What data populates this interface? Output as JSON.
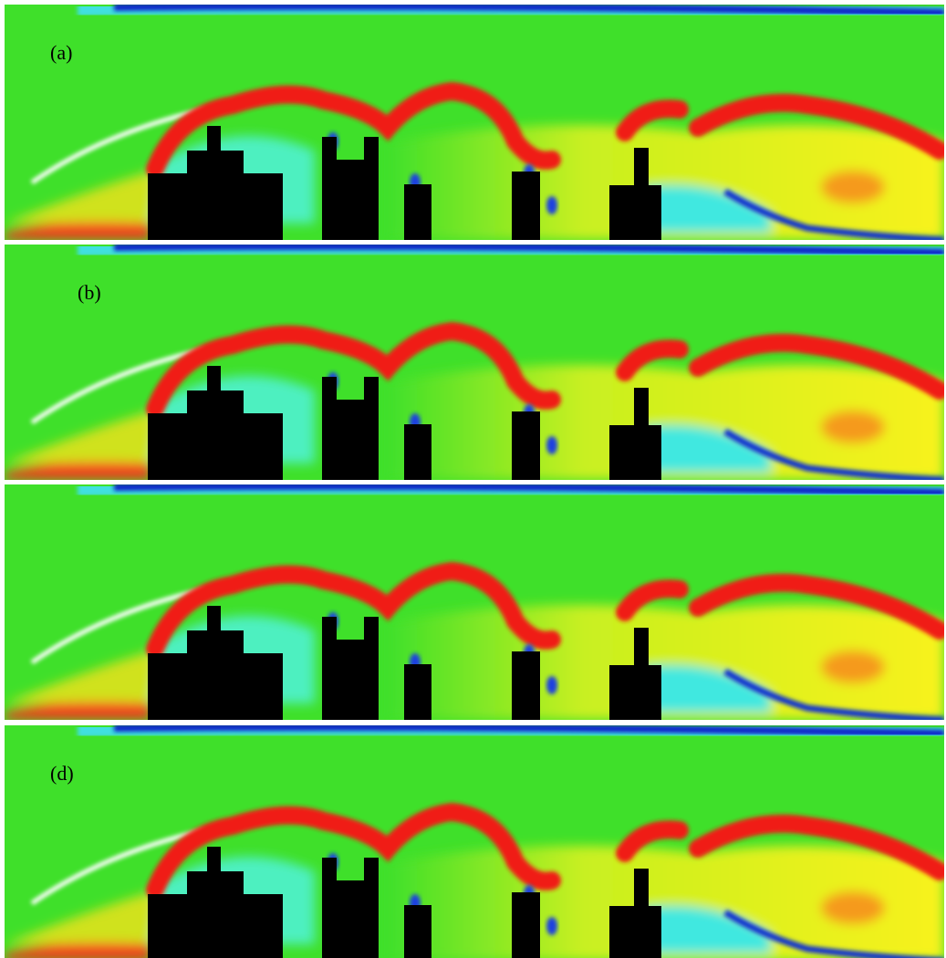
{
  "panel_labels": [
    "(a)",
    "(b)",
    null,
    "(d)"
  ]
}
